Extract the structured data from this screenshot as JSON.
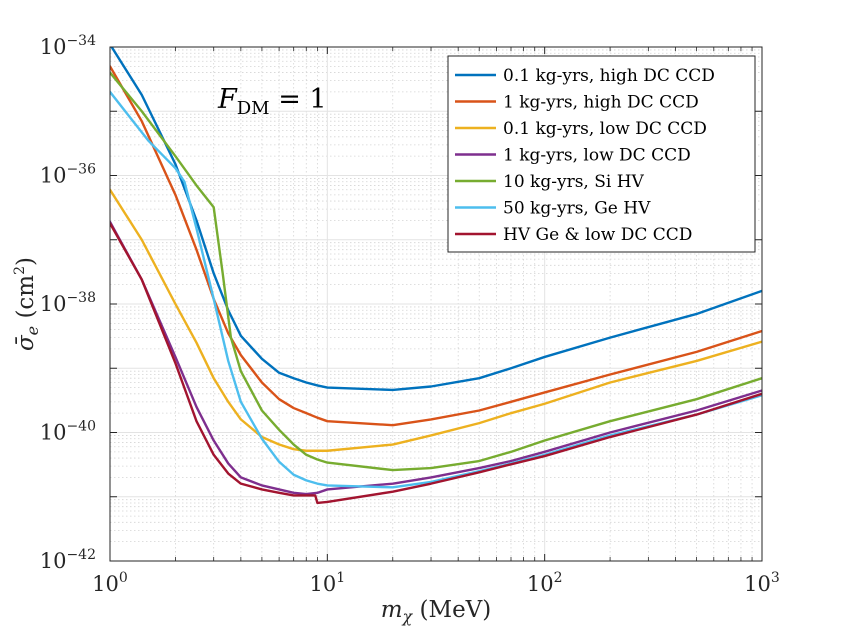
{
  "chart_data": {
    "type": "line",
    "title": "",
    "xscale": "log",
    "yscale": "log",
    "xlim": [
      1,
      1000
    ],
    "ylim": [
      1e-42,
      1e-34
    ],
    "grid": true,
    "legend_position": "top-right",
    "xlabel": {
      "var": "m",
      "sub": "χ",
      "unit": " (MeV)"
    },
    "ylabel": {
      "var": "σ̄",
      "sub": "e",
      "unit_open": " (cm",
      "unit_sup": "2",
      "unit_close": ")"
    },
    "annotation": {
      "var": "F",
      "sub": "DM",
      "rest": " = 1"
    },
    "xticks": [
      {
        "value": 1,
        "base": "10",
        "exp": "0"
      },
      {
        "value": 10,
        "base": "10",
        "exp": "1"
      },
      {
        "value": 100,
        "base": "10",
        "exp": "2"
      },
      {
        "value": 1000,
        "base": "10",
        "exp": "3"
      }
    ],
    "yticks": [
      {
        "value": 1e-42,
        "base": "10",
        "exp": "−42"
      },
      {
        "value": 1e-40,
        "base": "10",
        "exp": "−40"
      },
      {
        "value": 1e-38,
        "base": "10",
        "exp": "−38"
      },
      {
        "value": 1e-36,
        "base": "10",
        "exp": "−36"
      },
      {
        "value": 1e-34,
        "base": "10",
        "exp": "−34"
      }
    ],
    "series": [
      {
        "name": "0.1 kg-yrs, high DC CCD",
        "color": "#0072bd",
        "points": [
          [
            1,
            1.1e-34
          ],
          [
            1.4,
            1.8e-35
          ],
          [
            2,
            1.5e-36
          ],
          [
            2.5,
            2e-37
          ],
          [
            3,
            3e-38
          ],
          [
            3.5,
            8e-39
          ],
          [
            4,
            3.2e-39
          ],
          [
            5,
            1.4e-39
          ],
          [
            6,
            8.5e-40
          ],
          [
            7,
            7e-40
          ],
          [
            8,
            6e-40
          ],
          [
            9,
            5.4e-40
          ],
          [
            10,
            5e-40
          ],
          [
            20,
            4.6e-40
          ],
          [
            30,
            5.2e-40
          ],
          [
            50,
            7e-40
          ],
          [
            70,
            1e-39
          ],
          [
            100,
            1.5e-39
          ],
          [
            200,
            3e-39
          ],
          [
            500,
            7e-39
          ],
          [
            1000,
            1.6e-38
          ]
        ]
      },
      {
        "name": "1 kg-yrs, high DC CCD",
        "color": "#d95319",
        "points": [
          [
            1,
            5e-35
          ],
          [
            1.4,
            7e-36
          ],
          [
            2,
            5e-37
          ],
          [
            2.5,
            7e-38
          ],
          [
            3,
            1.2e-38
          ],
          [
            3.5,
            3.5e-39
          ],
          [
            4,
            1.6e-39
          ],
          [
            5,
            6e-40
          ],
          [
            6,
            3.3e-40
          ],
          [
            7,
            2.4e-40
          ],
          [
            8,
            2e-40
          ],
          [
            9,
            1.7e-40
          ],
          [
            10,
            1.5e-40
          ],
          [
            20,
            1.3e-40
          ],
          [
            30,
            1.6e-40
          ],
          [
            50,
            2.2e-40
          ],
          [
            70,
            3e-40
          ],
          [
            100,
            4.2e-40
          ],
          [
            200,
            8e-40
          ],
          [
            500,
            1.8e-39
          ],
          [
            1000,
            3.8e-39
          ]
        ]
      },
      {
        "name": "0.1 kg-yrs, low DC CCD",
        "color": "#edb120",
        "points": [
          [
            1,
            6e-37
          ],
          [
            1.4,
            1e-37
          ],
          [
            2,
            1e-38
          ],
          [
            2.5,
            2.5e-39
          ],
          [
            3,
            7e-40
          ],
          [
            3.5,
            3e-40
          ],
          [
            4,
            1.6e-40
          ],
          [
            5,
            8.5e-41
          ],
          [
            6,
            6.5e-41
          ],
          [
            7,
            5.5e-41
          ],
          [
            8,
            5.2e-41
          ],
          [
            9,
            5.2e-41
          ],
          [
            10,
            5.2e-41
          ],
          [
            20,
            6.5e-41
          ],
          [
            30,
            9e-41
          ],
          [
            50,
            1.4e-40
          ],
          [
            70,
            2e-40
          ],
          [
            100,
            2.8e-40
          ],
          [
            200,
            6e-40
          ],
          [
            500,
            1.3e-39
          ],
          [
            1000,
            2.6e-39
          ]
        ]
      },
      {
        "name": "1 kg-yrs, low DC CCD",
        "color": "#7e2f8e",
        "points": [
          [
            1,
            1.9e-37
          ],
          [
            1.4,
            2.4e-38
          ],
          [
            2,
            1.5e-39
          ],
          [
            2.5,
            2.5e-40
          ],
          [
            3,
            7.5e-41
          ],
          [
            3.5,
            3.3e-41
          ],
          [
            4,
            2e-41
          ],
          [
            5,
            1.5e-41
          ],
          [
            6,
            1.3e-41
          ],
          [
            7,
            1.15e-41
          ],
          [
            8,
            1.1e-41
          ],
          [
            9,
            1.15e-41
          ],
          [
            10,
            1.3e-41
          ],
          [
            20,
            1.6e-41
          ],
          [
            30,
            2e-41
          ],
          [
            50,
            2.8e-41
          ],
          [
            70,
            3.6e-41
          ],
          [
            100,
            5e-41
          ],
          [
            200,
            1e-40
          ],
          [
            500,
            2.2e-40
          ],
          [
            1000,
            4.5e-40
          ]
        ]
      },
      {
        "name": "10 kg-yrs, Si HV",
        "color": "#77ac30",
        "points": [
          [
            1,
            4e-35
          ],
          [
            1.4,
            1e-35
          ],
          [
            2,
            2e-36
          ],
          [
            2.5,
            7e-37
          ],
          [
            3,
            3.2e-37
          ],
          [
            3.3,
            3e-38
          ],
          [
            3.6,
            3e-39
          ],
          [
            4,
            9e-40
          ],
          [
            5,
            2.2e-40
          ],
          [
            6,
            1.1e-40
          ],
          [
            7,
            6.5e-41
          ],
          [
            8,
            4.5e-41
          ],
          [
            9,
            3.8e-41
          ],
          [
            10,
            3.4e-41
          ],
          [
            20,
            2.6e-41
          ],
          [
            30,
            2.8e-41
          ],
          [
            50,
            3.6e-41
          ],
          [
            70,
            5e-41
          ],
          [
            100,
            7.5e-41
          ],
          [
            200,
            1.5e-40
          ],
          [
            500,
            3.3e-40
          ],
          [
            1000,
            7e-40
          ]
        ]
      },
      {
        "name": "50 kg-yrs, Ge HV",
        "color": "#4dbeee",
        "points": [
          [
            1,
            2e-35
          ],
          [
            1.5,
            3.5e-36
          ],
          [
            2,
            1.3e-36
          ],
          [
            2.2,
            8e-37
          ],
          [
            2.5,
            1.5e-37
          ],
          [
            3,
            1.2e-38
          ],
          [
            3.5,
            1.3e-39
          ],
          [
            4,
            3e-40
          ],
          [
            5,
            8e-41
          ],
          [
            6,
            3.5e-41
          ],
          [
            7,
            2.2e-41
          ],
          [
            8,
            1.8e-41
          ],
          [
            9,
            1.6e-41
          ],
          [
            10,
            1.5e-41
          ],
          [
            20,
            1.4e-41
          ],
          [
            30,
            1.7e-41
          ],
          [
            50,
            2.5e-41
          ],
          [
            70,
            3.3e-41
          ],
          [
            100,
            4.5e-41
          ],
          [
            200,
            9e-41
          ],
          [
            500,
            1.9e-40
          ],
          [
            1000,
            3.8e-40
          ]
        ]
      },
      {
        "name": "HV Ge & low DC CCD",
        "color": "#a2142f",
        "points": [
          [
            1,
            1.8e-37
          ],
          [
            1.4,
            2.4e-38
          ],
          [
            2,
            1.2e-39
          ],
          [
            2.5,
            1.5e-40
          ],
          [
            3,
            4.5e-41
          ],
          [
            3.5,
            2.3e-41
          ],
          [
            4,
            1.6e-41
          ],
          [
            5,
            1.3e-41
          ],
          [
            6,
            1.15e-41
          ],
          [
            7,
            1.05e-41
          ],
          [
            8,
            1.05e-41
          ],
          [
            8.8,
            1.05e-41
          ],
          [
            9,
            8e-42
          ],
          [
            10,
            8.3e-42
          ],
          [
            20,
            1.2e-41
          ],
          [
            30,
            1.6e-41
          ],
          [
            50,
            2.4e-41
          ],
          [
            70,
            3.2e-41
          ],
          [
            100,
            4.3e-41
          ],
          [
            200,
            8.5e-41
          ],
          [
            500,
            1.9e-40
          ],
          [
            1000,
            4e-40
          ]
        ]
      }
    ]
  }
}
